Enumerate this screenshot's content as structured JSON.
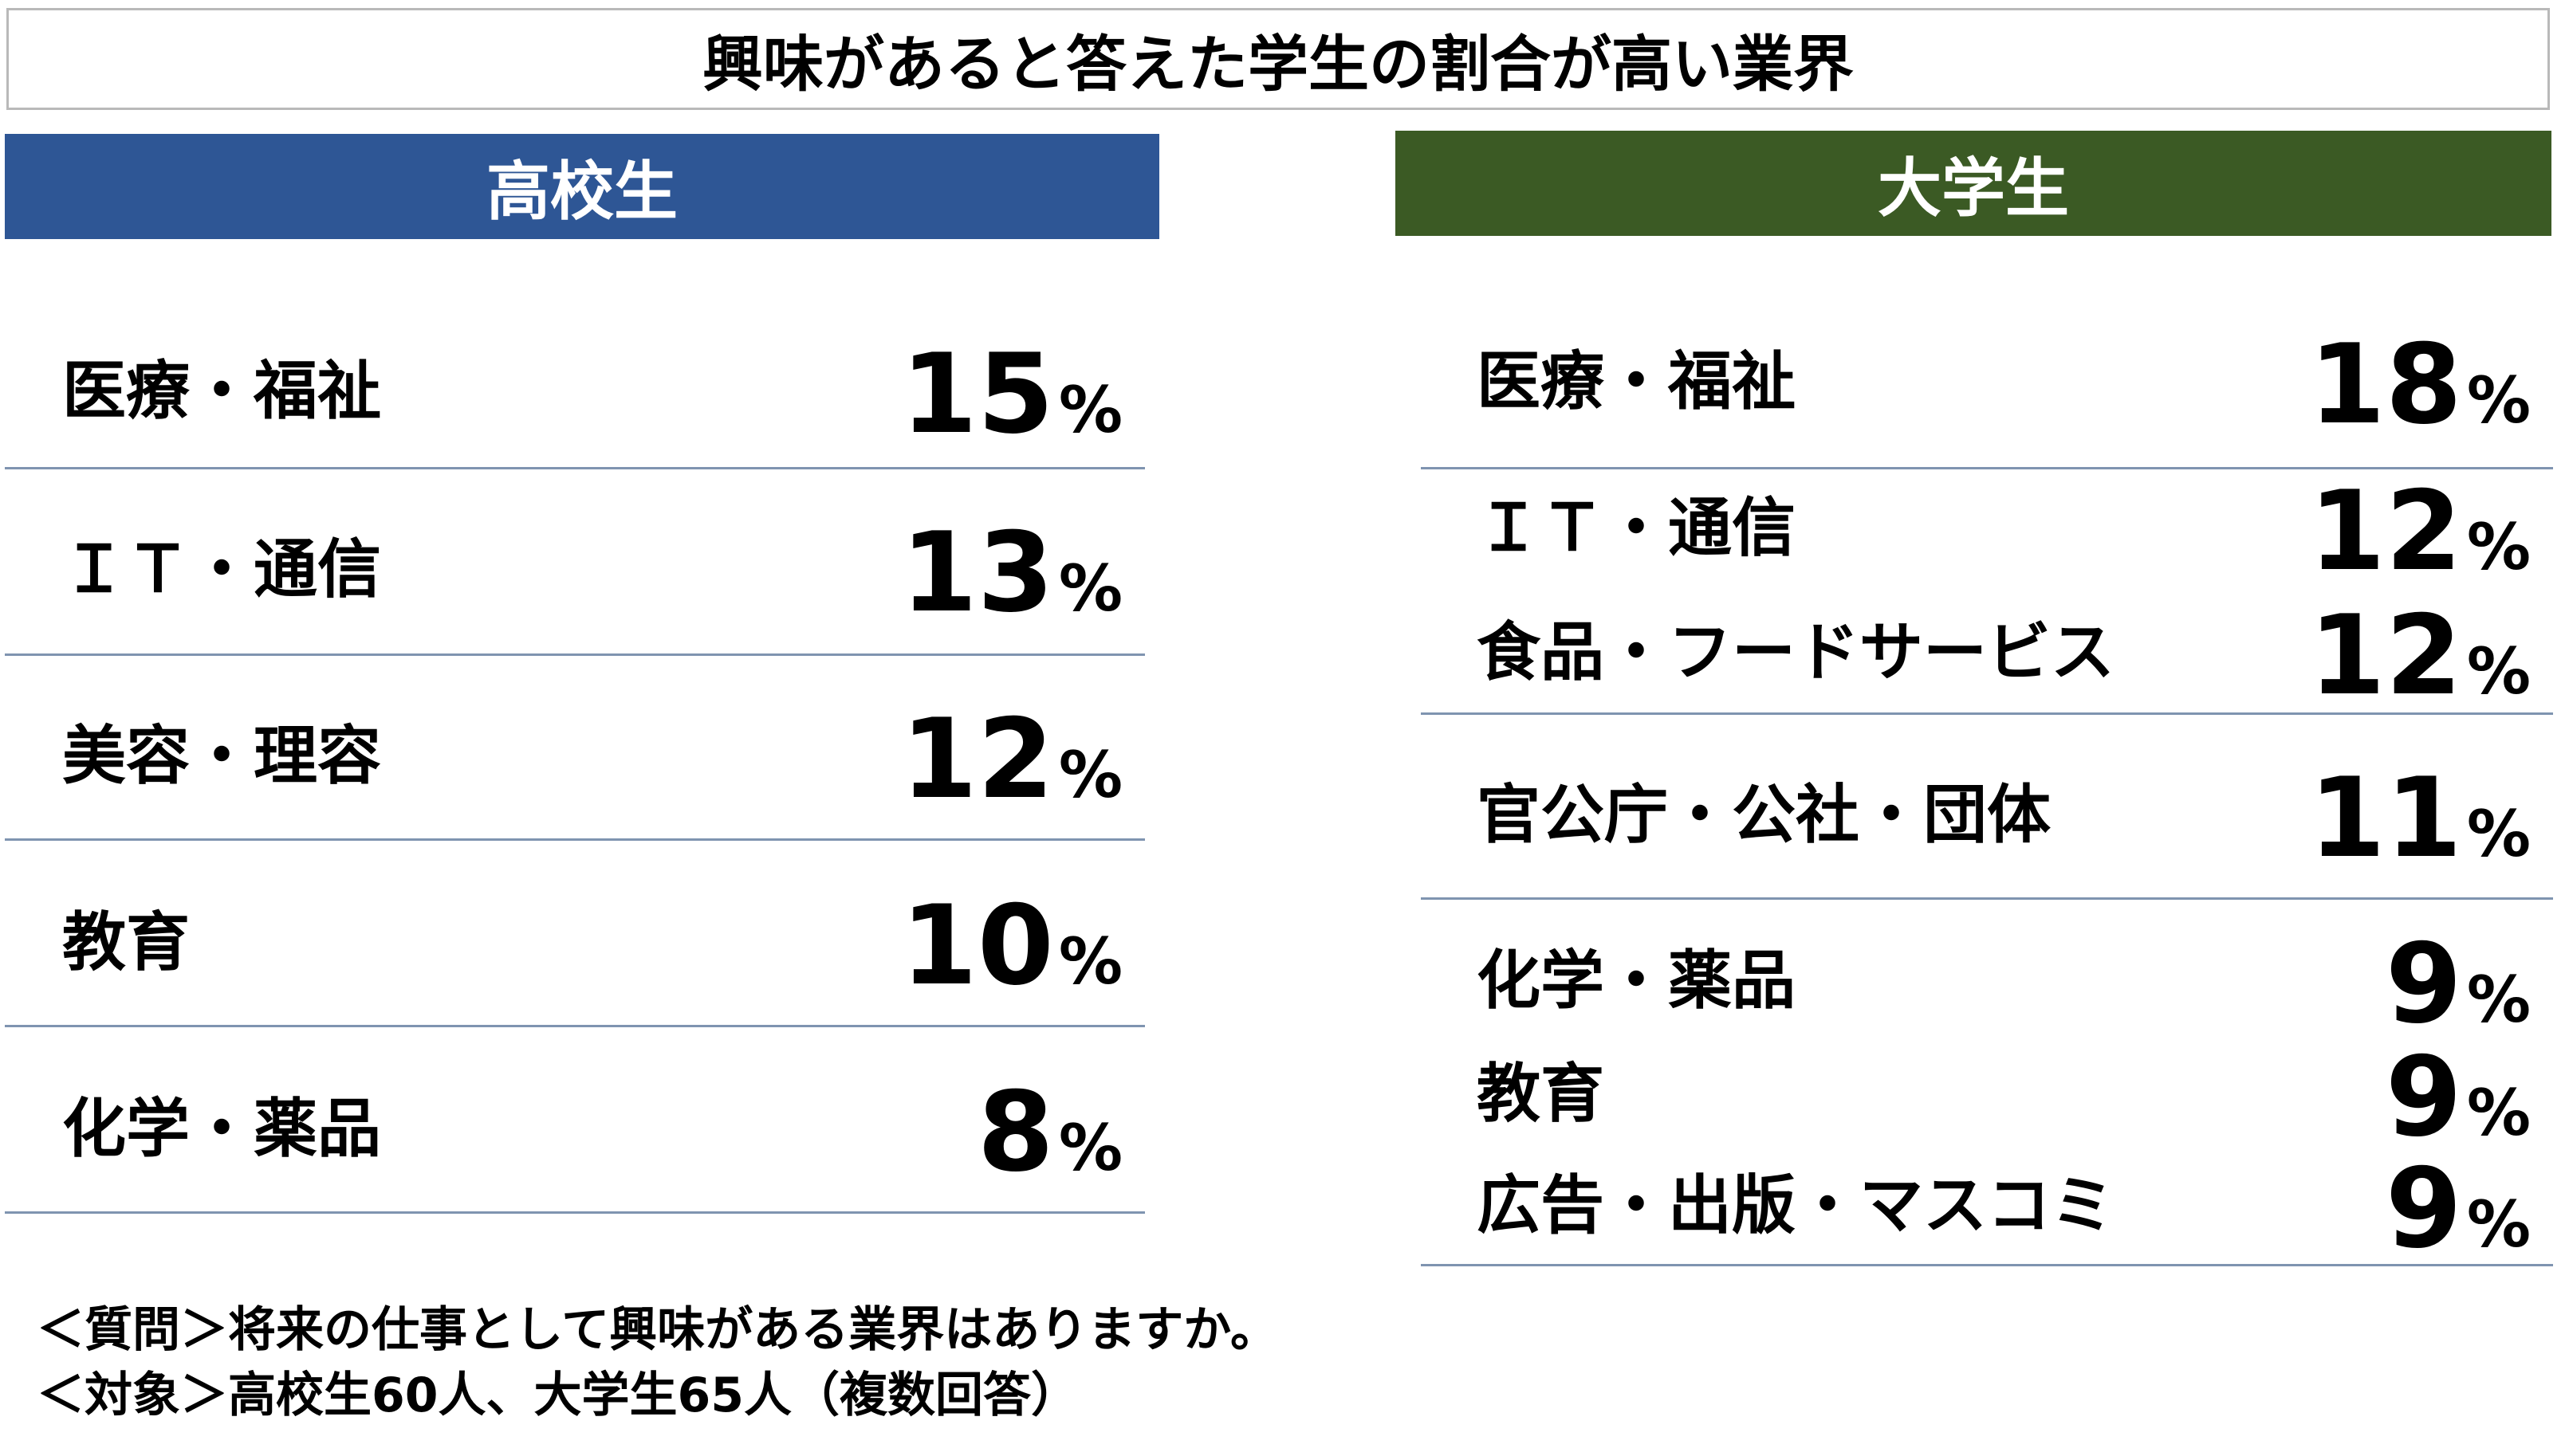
{
  "title": "興味があると答えた学生の割合が高い業界",
  "high_school": {
    "header": "高校生",
    "items": [
      {
        "label": "医療・福祉",
        "value": "15",
        "unit": "%"
      },
      {
        "label": "ＩＴ・通信",
        "value": "13",
        "unit": "%"
      },
      {
        "label": "美容・理容",
        "value": "12",
        "unit": "%"
      },
      {
        "label": "教育",
        "value": "10",
        "unit": "%"
      },
      {
        "label": "化学・薬品",
        "value": "8",
        "unit": "%"
      }
    ]
  },
  "university": {
    "header": "大学生",
    "items": [
      {
        "label": "医療・福祉",
        "value": "18",
        "unit": "%"
      },
      {
        "label": "ＩＴ・通信",
        "value": "12",
        "unit": "%"
      },
      {
        "label": "食品・フードサービス",
        "value": "12",
        "unit": "%"
      },
      {
        "label": "官公庁・公社・団体",
        "value": "11",
        "unit": "%"
      },
      {
        "label": "化学・薬品",
        "value": "9",
        "unit": "%"
      },
      {
        "label": "教育",
        "value": "9",
        "unit": "%"
      },
      {
        "label": "広告・出版・マスコミ",
        "value": "9",
        "unit": "%"
      }
    ]
  },
  "footnotes": {
    "question": "＜質問＞将来の仕事として興味がある業界はありますか。",
    "target": "＜対象＞高校生60人、大学生65人（複数回答）"
  }
}
